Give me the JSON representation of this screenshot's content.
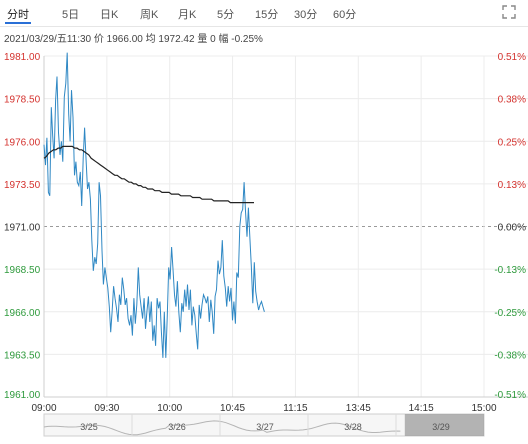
{
  "tabs": [
    {
      "label": "分时",
      "active": true
    },
    {
      "label": "5日"
    },
    {
      "label": "日K"
    },
    {
      "label": "周K"
    },
    {
      "label": "月K"
    },
    {
      "label": "5分"
    },
    {
      "label": "15分"
    },
    {
      "label": "30分"
    },
    {
      "label": "60分"
    }
  ],
  "info": {
    "datetime": "2021/03/29/五11:30",
    "price_label": "价",
    "price": "1966.00",
    "avg_label": "均",
    "avg": "1972.42",
    "vol_label": "量",
    "vol": "0",
    "change_label": "幅",
    "change": "-0.25%"
  },
  "colors": {
    "price_line": "#2f88c4",
    "avg_line": "#222222",
    "up": "#d4322e",
    "down": "#2e9a3c",
    "neutral": "#333333",
    "grid": "#ececec",
    "accent": "#2a6fd6"
  },
  "icons": {
    "expand": "expand-icon"
  },
  "chart_data": {
    "type": "line",
    "ylim": [
      1961.0,
      1981.0
    ],
    "y_ticks": [
      "1981.00",
      "1978.50",
      "1976.00",
      "1973.50",
      "1971.00",
      "1968.50",
      "1966.00",
      "1963.50",
      "1961.00"
    ],
    "pct_ticks": [
      "0.51%",
      "0.38%",
      "0.25%",
      "0.13%",
      "0.00%",
      "-0.13%",
      "-0.25%",
      "-0.38%",
      "-0.51%"
    ],
    "x_ticks": [
      "09:00",
      "09:30",
      "10:00",
      "10:45",
      "11:15",
      "13:45",
      "14:15",
      "15:00"
    ],
    "baseline": 1971.0,
    "series": [
      {
        "role": "price",
        "values": [
          1975.8,
          1974.6,
          1976.2,
          1973.0,
          1972.8,
          1978.0,
          1976.3,
          1975.0,
          1978.4,
          1979.8,
          1976.5,
          1975.2,
          1976.0,
          1974.8,
          1978.6,
          1979.4,
          1981.2,
          1977.6,
          1976.0,
          1979.0,
          1977.4,
          1974.0,
          1974.8,
          1973.6,
          1973.4,
          1974.2,
          1972.2,
          1975.0,
          1976.8,
          1975.0,
          1973.2,
          1973.6,
          1972.6,
          1970.2,
          1968.4,
          1969.2,
          1968.8,
          1970.0,
          1973.6,
          1972.8,
          1969.6,
          1967.6,
          1968.6,
          1968.0,
          1967.4,
          1966.3,
          1964.8,
          1966.0,
          1967.5,
          1966.8,
          1966.2,
          1965.4,
          1967.0,
          1966.4,
          1968.0,
          1967.3,
          1966.4,
          1966.8,
          1965.6,
          1965.2,
          1965.8,
          1964.6,
          1966.8,
          1965.3,
          1966.4,
          1968.6,
          1967.0,
          1966.3,
          1965.6,
          1966.8,
          1965.0,
          1966.0,
          1966.9,
          1965.4,
          1966.6,
          1964.3,
          1965.2,
          1964.0,
          1966.8,
          1966.2,
          1966.6,
          1964.8,
          1963.3,
          1966.0,
          1963.3,
          1965.8,
          1968.6,
          1967.9,
          1969.8,
          1968.5,
          1967.0,
          1966.3,
          1967.8,
          1966.0,
          1964.8,
          1966.5,
          1966.0,
          1967.3,
          1966.3,
          1967.6,
          1966.1,
          1967.3,
          1965.2,
          1966.3,
          1965.8,
          1964.7,
          1963.8,
          1966.4,
          1965.6,
          1966.4,
          1967.0,
          1966.8,
          1966.5,
          1966.9,
          1965.4,
          1966.7,
          1966.0,
          1964.7,
          1966.9,
          1967.3,
          1969.0,
          1968.2,
          1968.6,
          1970.2,
          1968.1,
          1967.4,
          1966.3,
          1967.5,
          1966.6,
          1967.4,
          1965.5,
          1966.6,
          1965.3,
          1968.3,
          1968.0,
          1971.0,
          1971.8,
          1972.0,
          1973.6,
          1971.9,
          1970.4,
          1972.1,
          1970.3,
          1968.7,
          1966.5,
          1968.9,
          1967.2,
          1966.6,
          1966.1,
          1966.4,
          1966.6,
          1966.3,
          1966.0
        ],
        "color": "#2f88c4"
      },
      {
        "role": "average",
        "values": [
          1975.0,
          1975.1,
          1975.3,
          1975.4,
          1975.5,
          1975.5,
          1975.6,
          1975.6,
          1975.7,
          1975.7,
          1975.7,
          1975.7,
          1975.7,
          1975.6,
          1975.6,
          1975.5,
          1975.5,
          1975.4,
          1975.3,
          1975.2,
          1975.0,
          1974.9,
          1974.8,
          1974.7,
          1974.6,
          1974.5,
          1974.4,
          1974.3,
          1974.2,
          1974.1,
          1974.0,
          1974.0,
          1973.9,
          1973.8,
          1973.8,
          1973.7,
          1973.6,
          1973.6,
          1973.5,
          1973.5,
          1973.4,
          1973.4,
          1973.3,
          1973.3,
          1973.2,
          1973.2,
          1973.2,
          1973.1,
          1973.1,
          1973.1,
          1973.0,
          1973.0,
          1973.0,
          1973.0,
          1972.9,
          1972.9,
          1972.9,
          1972.9,
          1972.8,
          1972.8,
          1972.8,
          1972.8,
          1972.8,
          1972.7,
          1972.7,
          1972.7,
          1972.7,
          1972.6,
          1972.6,
          1972.6,
          1972.6,
          1972.6,
          1972.5,
          1972.5,
          1972.5,
          1972.5,
          1972.5,
          1972.5,
          1972.5,
          1972.4,
          1972.4,
          1972.4,
          1972.4,
          1972.4,
          1972.4,
          1972.4,
          1972.4,
          1972.4,
          1972.4,
          1972.4
        ],
        "color": "#222222"
      }
    ]
  },
  "navigator": {
    "labels": [
      "3/25",
      "3/26",
      "3/27",
      "3/28",
      "3/29"
    ]
  }
}
